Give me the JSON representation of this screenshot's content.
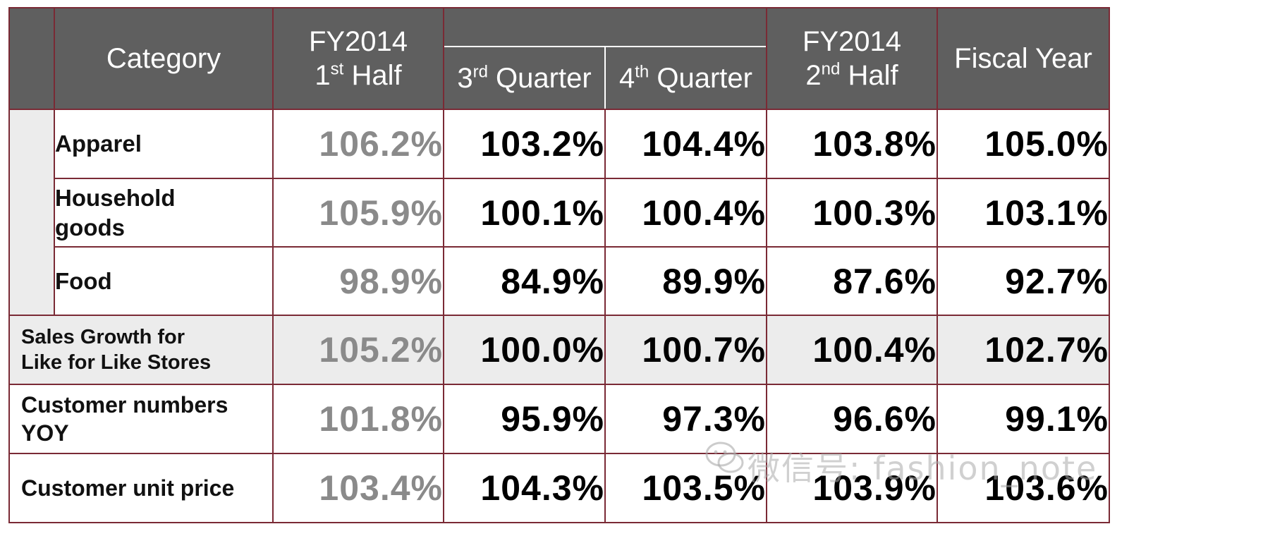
{
  "chart_data": {
    "type": "table",
    "header": {
      "category": "Category",
      "h1": {
        "line1": "FY2014",
        "line2_num": "1",
        "line2_sup": "st",
        "line2_text": " Half"
      },
      "q3": {
        "num": "3",
        "sup": "rd",
        "text": " Quarter"
      },
      "q4": {
        "num": "4",
        "sup": "th",
        "text": " Quarter"
      },
      "h2": {
        "line1": "FY2014",
        "line2_num": "2",
        "line2_sup": "nd",
        "line2_text": " Half"
      },
      "fy": "Fiscal Year"
    },
    "rows": [
      {
        "label": "Apparel",
        "h1": "106.2%",
        "q3": "103.2%",
        "q4": "104.4%",
        "h2": "103.8%",
        "fy": "105.0%"
      },
      {
        "label": "Household goods",
        "h1": "105.9%",
        "q3": "100.1%",
        "q4": "100.4%",
        "h2": "100.3%",
        "fy": "103.1%"
      },
      {
        "label": "Food",
        "h1": "98.9%",
        "q3": "84.9%",
        "q4": "89.9%",
        "h2": "87.6%",
        "fy": "92.7%"
      },
      {
        "label": "Sales Growth for Like for Like Stores",
        "h1": "105.2%",
        "q3": "100.0%",
        "q4": "100.7%",
        "h2": "100.4%",
        "fy": "102.7%"
      },
      {
        "label": "Customer numbers YOY",
        "h1": "101.8%",
        "q3": "95.9%",
        "q4": "97.3%",
        "h2": "96.6%",
        "fy": "99.1%"
      },
      {
        "label": "Customer unit price",
        "h1": "103.4%",
        "q3": "104.3%",
        "q4": "103.5%",
        "h2": "103.9%",
        "fy": "103.6%"
      }
    ],
    "colors": {
      "header_bg": "#5f5f5f",
      "border": "#7a2a35",
      "shade": "#ececec",
      "first_half_text": "#8a8a8a"
    }
  },
  "watermark": {
    "text": "微信号: fashion_note",
    "icon": "wechat-icon"
  }
}
